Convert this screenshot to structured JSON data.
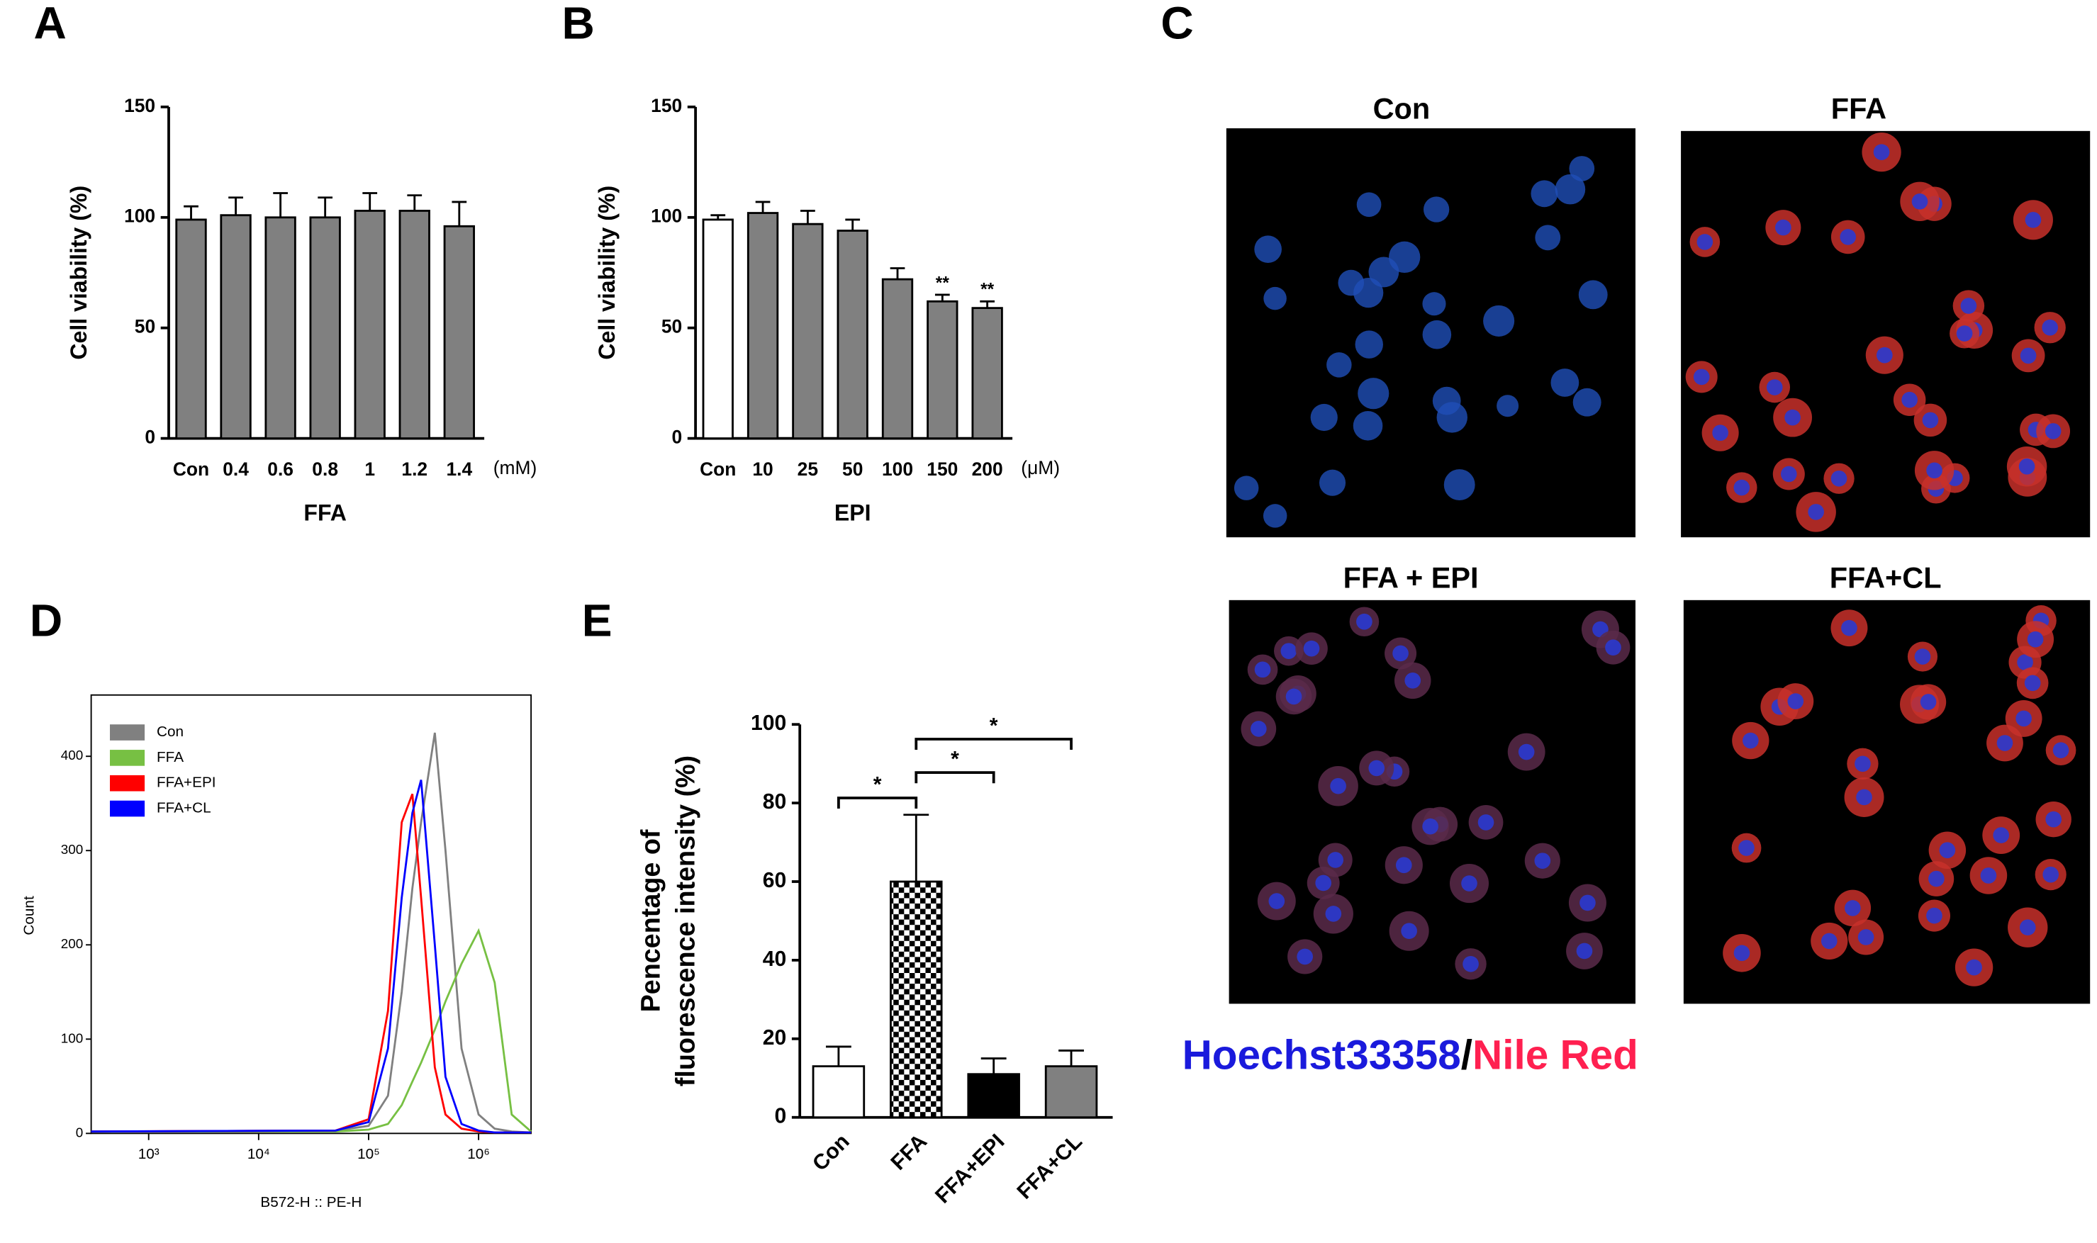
{
  "chart_data": [
    {
      "type": "bar",
      "panel": "A",
      "categories": [
        "Con",
        "0.4",
        "0.6",
        "0.8",
        "1",
        "1.2",
        "1.4"
      ],
      "unit": "(mM)",
      "x_label": "FFA",
      "y_label": "Cell viability (%)",
      "values": [
        99,
        101,
        100,
        100,
        103,
        103,
        96
      ],
      "errors": [
        6,
        8,
        11,
        9,
        8,
        7,
        11
      ],
      "colors": [
        "#808080",
        "#808080",
        "#808080",
        "#808080",
        "#808080",
        "#808080",
        "#808080"
      ],
      "ylim": [
        0,
        150
      ],
      "yticks": [
        0,
        50,
        100,
        150
      ]
    },
    {
      "type": "bar",
      "panel": "B",
      "categories": [
        "Con",
        "10",
        "25",
        "50",
        "100",
        "150",
        "200"
      ],
      "unit": "(μM)",
      "x_label": "EPI",
      "y_label": "Cell viability (%)",
      "values": [
        99,
        102,
        97,
        94,
        72,
        62,
        59
      ],
      "errors": [
        2,
        5,
        6,
        5,
        5,
        3,
        3
      ],
      "colors": [
        "#ffffff",
        "#808080",
        "#808080",
        "#808080",
        "#808080",
        "#808080",
        "#808080"
      ],
      "annotations": [
        null,
        null,
        null,
        null,
        null,
        "**",
        "**"
      ],
      "ylim": [
        0,
        150
      ],
      "yticks": [
        0,
        50,
        100,
        150
      ]
    },
    {
      "type": "line",
      "panel": "D",
      "x_label": "B572-H :: PE-H",
      "y_label": "Count",
      "log_x": true,
      "x": [
        300,
        50000,
        100000,
        150000,
        200000,
        250000,
        300000,
        400000,
        500000,
        700000,
        1000000,
        1400000,
        2000000,
        3000000
      ],
      "series": [
        {
          "name": "Con",
          "color": "#808080",
          "values": [
            2,
            3,
            8,
            40,
            150,
            260,
            330,
            425,
            300,
            90,
            20,
            5,
            2,
            1
          ]
        },
        {
          "name": "FFA",
          "color": "#77c043",
          "values": [
            2,
            2,
            4,
            10,
            30,
            55,
            75,
            110,
            140,
            180,
            215,
            160,
            20,
            2
          ]
        },
        {
          "name": "FFA+EPI",
          "color": "#ff0000",
          "values": [
            2,
            3,
            15,
            130,
            330,
            360,
            250,
            70,
            20,
            5,
            2,
            1,
            1,
            1
          ]
        },
        {
          "name": "FFA+CL",
          "color": "#0000ff",
          "values": [
            2,
            3,
            12,
            90,
            250,
            340,
            375,
            200,
            60,
            10,
            3,
            1,
            1,
            1
          ]
        }
      ],
      "xlim": [
        300,
        3000000
      ],
      "xticks": [
        {
          "value": 1000,
          "label": "10³"
        },
        {
          "value": 10000,
          "label": "10⁴"
        },
        {
          "value": 100000,
          "label": "10⁵"
        },
        {
          "value": 1000000,
          "label": "10⁶"
        }
      ],
      "ylim": [
        0,
        465
      ],
      "yticks": [
        0,
        100,
        200,
        300,
        400
      ],
      "legend": "upper left"
    },
    {
      "type": "bar",
      "panel": "E",
      "categories": [
        "Con",
        "FFA",
        "FFA+EPI",
        "FFA+CL"
      ],
      "y_label": [
        "Pencentage of",
        "fluorescence intensity (%)"
      ],
      "values": [
        13,
        60,
        11,
        13
      ],
      "errors": [
        5,
        17,
        4,
        4
      ],
      "colors": [
        "#ffffff",
        "checker",
        "#000000",
        "#808080"
      ],
      "comparisons": [
        {
          "groups": [
            "Con",
            "FFA"
          ],
          "label": "*"
        },
        {
          "groups": [
            "FFA",
            "FFA+EPI"
          ],
          "label": "*"
        },
        {
          "groups": [
            "FFA",
            "FFA+CL"
          ],
          "label": "*"
        }
      ],
      "ylim": [
        0,
        100
      ],
      "yticks": [
        0,
        20,
        40,
        60,
        80,
        100
      ]
    }
  ],
  "micrographs": {
    "panel": "C",
    "titles": [
      "Con",
      "FFA",
      "FFA + EPI",
      "FFA+CL"
    ],
    "legend": [
      "Hoechst33358",
      "/",
      "Nile Red"
    ]
  }
}
